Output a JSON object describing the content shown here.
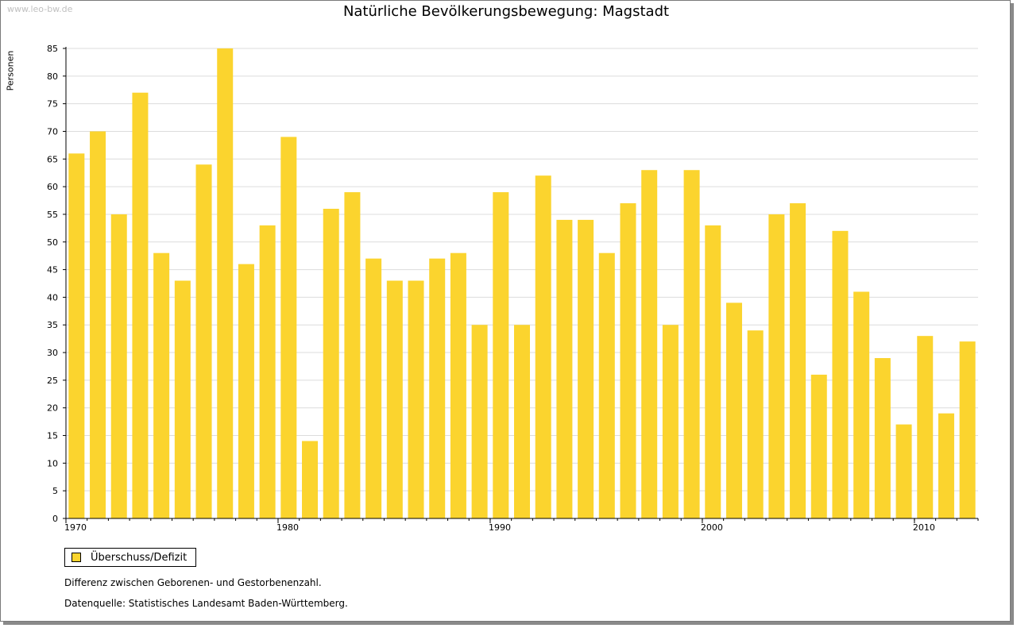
{
  "watermark": "www.leo-bw.de",
  "footer": {
    "legend_label": "Überschuss/Defizit",
    "note": "Differenz zwischen Geborenen- und Gestorbenenzahl.",
    "source": "Datenquelle: Statistisches Landesamt Baden-Württemberg."
  },
  "colors": {
    "bar": "#fbd42e",
    "grid": "#dcdcdc",
    "axis": "#000000"
  },
  "chart_data": {
    "type": "bar",
    "title": "Natürliche Bevölkerungsbewegung: Magstadt",
    "ylabel": "Personen",
    "xlabel": "",
    "ylim": [
      0,
      85
    ],
    "yticks": [
      0,
      5,
      10,
      15,
      20,
      25,
      30,
      35,
      40,
      45,
      50,
      55,
      60,
      65,
      70,
      75,
      80,
      85
    ],
    "xtick_labels": [
      "1970",
      "1980",
      "1990",
      "2000",
      "2010"
    ],
    "grid": true,
    "legend": [
      "Überschuss/Defizit"
    ],
    "categories": [
      1970,
      1971,
      1972,
      1973,
      1974,
      1975,
      1976,
      1977,
      1978,
      1979,
      1980,
      1981,
      1982,
      1983,
      1984,
      1985,
      1986,
      1987,
      1988,
      1989,
      1990,
      1991,
      1992,
      1993,
      1994,
      1995,
      1996,
      1997,
      1998,
      1999,
      2000,
      2001,
      2002,
      2003,
      2004,
      2005,
      2006,
      2007,
      2008,
      2009,
      2010,
      2011,
      2012
    ],
    "series": [
      {
        "name": "Überschuss/Defizit",
        "values": [
          66,
          70,
          55,
          77,
          48,
          43,
          64,
          85,
          46,
          53,
          69,
          14,
          56,
          59,
          47,
          43,
          43,
          47,
          48,
          35,
          59,
          35,
          62,
          54,
          54,
          48,
          57,
          63,
          35,
          63,
          53,
          39,
          34,
          55,
          57,
          26,
          52,
          41,
          29,
          17,
          33,
          19,
          32
        ]
      }
    ]
  }
}
